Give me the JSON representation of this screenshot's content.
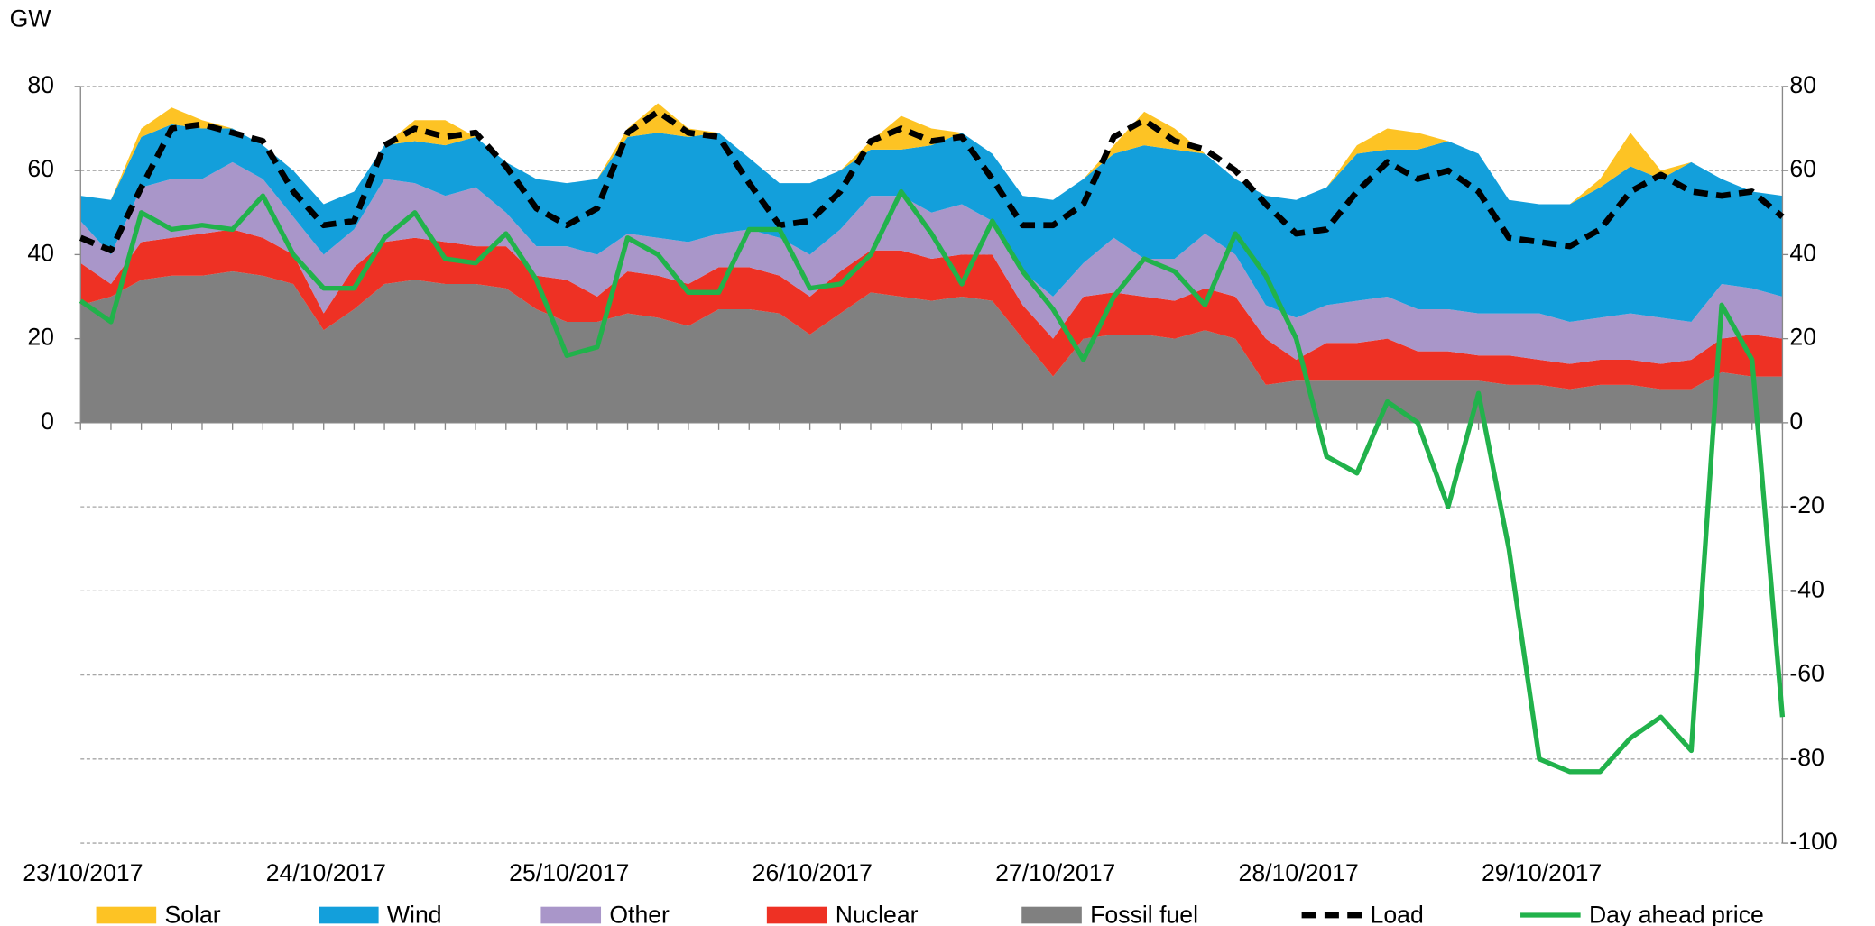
{
  "chart_data": {
    "type": "area",
    "ylabel": "GW",
    "categories": [
      "23/10/2017",
      null,
      null,
      null,
      null,
      null,
      null,
      null,
      "24/10/2017",
      null,
      null,
      null,
      null,
      null,
      null,
      null,
      "25/10/2017",
      null,
      null,
      null,
      null,
      null,
      null,
      null,
      "26/10/2017",
      null,
      null,
      null,
      null,
      null,
      null,
      null,
      "27/10/2017",
      null,
      null,
      null,
      null,
      null,
      null,
      null,
      "28/10/2017",
      null,
      null,
      null,
      null,
      null,
      null,
      null,
      "29/10/2017",
      null,
      null,
      null,
      null,
      null,
      null,
      null,
      null
    ],
    "ylim": [
      -100,
      80
    ],
    "yticks": [
      0,
      20,
      40,
      60,
      80
    ],
    "y2lim": [
      -100,
      80
    ],
    "y2ticks": [
      -100,
      -80,
      -60,
      -40,
      -20,
      0,
      20,
      40,
      60,
      80
    ],
    "grid": true,
    "legend": "bottom",
    "series": [
      {
        "name": "Solar",
        "kind": "area",
        "color": "#fdc324",
        "values": [
          0,
          0,
          2,
          4,
          2,
          0,
          0,
          0,
          0,
          0,
          0,
          5,
          6,
          0,
          0,
          0,
          0,
          0,
          2,
          7,
          2,
          0,
          0,
          0,
          0,
          0,
          2,
          8,
          4,
          0,
          0,
          0,
          0,
          0,
          2,
          8,
          5,
          0,
          0,
          0,
          0,
          0,
          2,
          5,
          4,
          0,
          0,
          0,
          0,
          0,
          2,
          8,
          2,
          0,
          0,
          0,
          0
        ]
      },
      {
        "name": "Wind",
        "kind": "area",
        "color": "#139fdb",
        "values": [
          6,
          13,
          12,
          13,
          12,
          8,
          8,
          11,
          12,
          9,
          8,
          10,
          12,
          12,
          12,
          16,
          15,
          18,
          23,
          25,
          25,
          24,
          17,
          13,
          17,
          14,
          11,
          11,
          16,
          17,
          16,
          18,
          23,
          20,
          20,
          27,
          26,
          19,
          18,
          26,
          28,
          28,
          35,
          35,
          38,
          40,
          38,
          27,
          26,
          28,
          31,
          35,
          33,
          38,
          25,
          23,
          24
        ]
      },
      {
        "name": "Other",
        "kind": "area",
        "color": "#a996c9",
        "values": [
          10,
          7,
          13,
          14,
          13,
          16,
          14,
          9,
          14,
          9,
          15,
          13,
          11,
          14,
          8,
          7,
          8,
          10,
          9,
          9,
          10,
          8,
          9,
          9,
          10,
          10,
          13,
          13,
          11,
          12,
          8,
          8,
          10,
          8,
          13,
          9,
          10,
          13,
          10,
          8,
          10,
          9,
          10,
          10,
          10,
          10,
          10,
          10,
          11,
          10,
          10,
          11,
          11,
          9,
          13,
          11,
          10
        ]
      },
      {
        "name": "Nuclear",
        "kind": "area",
        "color": "#ee3124",
        "values": [
          10,
          3,
          9,
          9,
          10,
          10,
          9,
          7,
          4,
          10,
          10,
          10,
          10,
          9,
          10,
          8,
          10,
          6,
          10,
          10,
          10,
          10,
          10,
          9,
          9,
          10,
          10,
          11,
          10,
          10,
          11,
          8,
          9,
          10,
          10,
          9,
          9,
          10,
          10,
          11,
          5,
          9,
          9,
          10,
          7,
          7,
          6,
          7,
          6,
          6,
          6,
          6,
          6,
          7,
          8,
          10,
          9
        ]
      },
      {
        "name": "Fossil fuel",
        "kind": "area",
        "color": "#808080",
        "values": [
          28,
          30,
          34,
          35,
          35,
          36,
          35,
          33,
          22,
          27,
          33,
          34,
          33,
          33,
          32,
          27,
          24,
          24,
          26,
          25,
          23,
          27,
          27,
          26,
          21,
          26,
          31,
          30,
          29,
          30,
          29,
          20,
          11,
          20,
          21,
          21,
          20,
          22,
          20,
          9,
          10,
          10,
          10,
          10,
          10,
          10,
          10,
          9,
          9,
          8,
          9,
          9,
          8,
          8,
          12,
          11,
          11
        ]
      },
      {
        "name": "Load",
        "kind": "line",
        "line_style": "dashed",
        "color": "#000000",
        "values": [
          44,
          41,
          56,
          70,
          71,
          69,
          67,
          55,
          47,
          48,
          66,
          70,
          68,
          69,
          61,
          51,
          47,
          51,
          69,
          74,
          69,
          68,
          57,
          47,
          48,
          55,
          67,
          70,
          67,
          68,
          58,
          47,
          47,
          52,
          68,
          72,
          67,
          65,
          60,
          52,
          45,
          46,
          55,
          62,
          58,
          60,
          55,
          44,
          43,
          42,
          46,
          55,
          59,
          55,
          54,
          55,
          49
        ]
      },
      {
        "name": "Day ahead price",
        "kind": "line",
        "line_style": "solid",
        "color": "#21b24b",
        "axis": "y2",
        "values": [
          29,
          24,
          50,
          46,
          47,
          46,
          54,
          40,
          32,
          32,
          44,
          50,
          39,
          38,
          45,
          34,
          16,
          18,
          44,
          40,
          31,
          31,
          46,
          46,
          32,
          33,
          40,
          55,
          45,
          33,
          48,
          36,
          27,
          15,
          30,
          39,
          36,
          28,
          45,
          35,
          20,
          -8,
          -12,
          5,
          0,
          -20,
          7,
          -30,
          -80,
          -83,
          -83,
          -75,
          -70,
          -78,
          28,
          15,
          -70
        ]
      }
    ]
  }
}
